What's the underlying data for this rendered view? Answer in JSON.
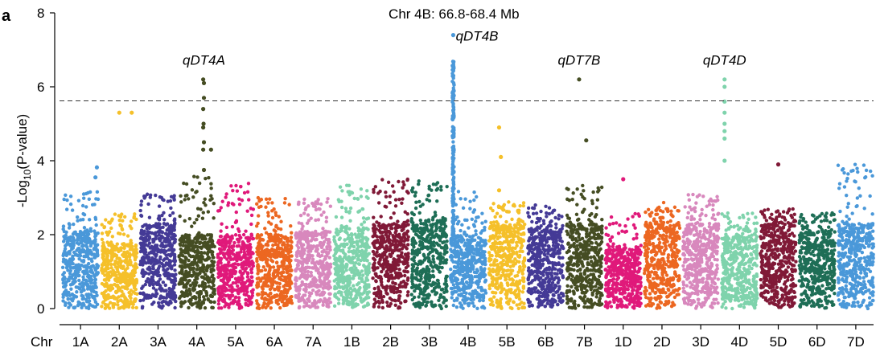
{
  "panel_label": "a",
  "chart_data": {
    "type": "scatter",
    "title": "",
    "xlabel": "Chr",
    "ylabel": "-Log10(P-value)",
    "ylabel_parts": {
      "main": "-Log",
      "sub": "10",
      "rest": "(P-value)"
    },
    "ylim": [
      0,
      8
    ],
    "yticks": [
      0,
      2,
      4,
      6,
      8
    ],
    "threshold": 5.62,
    "grid": false,
    "chromosomes": [
      {
        "name": "1A",
        "color": "#4a98d9",
        "base": 2.1,
        "peak": 3.2
      },
      {
        "name": "2A",
        "color": "#f5c02a",
        "base": 1.8,
        "peak": 2.6
      },
      {
        "name": "3A",
        "color": "#443a96",
        "base": 2.3,
        "peak": 3.1
      },
      {
        "name": "4A",
        "color": "#454d23",
        "base": 2.0,
        "peak": 3.6
      },
      {
        "name": "5A",
        "color": "#e0197a",
        "base": 2.0,
        "peak": 3.4
      },
      {
        "name": "6A",
        "color": "#ec6721",
        "base": 2.0,
        "peak": 3.0
      },
      {
        "name": "7A",
        "color": "#d888bd",
        "base": 2.1,
        "peak": 3.0
      },
      {
        "name": "1B",
        "color": "#7fd3ac",
        "base": 2.2,
        "peak": 3.4
      },
      {
        "name": "2B",
        "color": "#801937",
        "base": 2.3,
        "peak": 3.5
      },
      {
        "name": "3B",
        "color": "#1e6e56",
        "base": 2.4,
        "peak": 3.5
      },
      {
        "name": "4B",
        "color": "#4a98d9",
        "base": 2.0,
        "peak": 3.2
      },
      {
        "name": "5B",
        "color": "#f5c02a",
        "base": 2.3,
        "peak": 2.9
      },
      {
        "name": "6B",
        "color": "#443a96",
        "base": 2.2,
        "peak": 2.8
      },
      {
        "name": "7B",
        "color": "#454d23",
        "base": 2.3,
        "peak": 3.4
      },
      {
        "name": "1D",
        "color": "#e0197a",
        "base": 1.6,
        "peak": 2.6
      },
      {
        "name": "2D",
        "color": "#ec6721",
        "base": 2.3,
        "peak": 2.9
      },
      {
        "name": "3D",
        "color": "#d888bd",
        "base": 2.3,
        "peak": 3.1
      },
      {
        "name": "4D",
        "color": "#7fd3ac",
        "base": 2.0,
        "peak": 2.6
      },
      {
        "name": "5D",
        "color": "#801937",
        "base": 2.3,
        "peak": 2.7
      },
      {
        "name": "6D",
        "color": "#1e6e56",
        "base": 2.1,
        "peak": 2.6
      },
      {
        "name": "7D",
        "color": "#4a98d9",
        "base": 2.3,
        "peak": 3.9
      }
    ],
    "significant_points": [
      {
        "chr": "1A",
        "pos": 0.92,
        "y": 3.55
      },
      {
        "chr": "1A",
        "pos": 0.96,
        "y": 3.82
      },
      {
        "chr": "2A",
        "pos": 0.5,
        "y": 5.3
      },
      {
        "chr": "2A",
        "pos": 0.85,
        "y": 5.3
      },
      {
        "chr": "4A",
        "pos": 0.68,
        "y": 6.2
      },
      {
        "chr": "4A",
        "pos": 0.7,
        "y": 6.1
      },
      {
        "chr": "4A",
        "pos": 0.7,
        "y": 5.7
      },
      {
        "chr": "4A",
        "pos": 0.68,
        "y": 5.4
      },
      {
        "chr": "4A",
        "pos": 0.69,
        "y": 5.0
      },
      {
        "chr": "4A",
        "pos": 0.68,
        "y": 4.9
      },
      {
        "chr": "4A",
        "pos": 0.7,
        "y": 4.5
      },
      {
        "chr": "4A",
        "pos": 0.68,
        "y": 4.3
      },
      {
        "chr": "4A",
        "pos": 0.9,
        "y": 4.3
      },
      {
        "chr": "4A",
        "pos": 0.7,
        "y": 3.75
      },
      {
        "chr": "5B",
        "pos": 0.28,
        "y": 4.9
      },
      {
        "chr": "5B",
        "pos": 0.33,
        "y": 4.1
      },
      {
        "chr": "5B",
        "pos": 0.28,
        "y": 3.2
      },
      {
        "chr": "7B",
        "pos": 0.35,
        "y": 6.2
      },
      {
        "chr": "7B",
        "pos": 0.55,
        "y": 4.55
      },
      {
        "chr": "1D",
        "pos": 0.5,
        "y": 3.5
      },
      {
        "chr": "4D",
        "pos": 0.08,
        "y": 6.2
      },
      {
        "chr": "4D",
        "pos": 0.08,
        "y": 6.0
      },
      {
        "chr": "4D",
        "pos": 0.08,
        "y": 5.6
      },
      {
        "chr": "4D",
        "pos": 0.08,
        "y": 5.3
      },
      {
        "chr": "4D",
        "pos": 0.08,
        "y": 5.0
      },
      {
        "chr": "4D",
        "pos": 0.08,
        "y": 4.8
      },
      {
        "chr": "4D",
        "pos": 0.08,
        "y": 4.6
      },
      {
        "chr": "4D",
        "pos": 0.08,
        "y": 4.0
      },
      {
        "chr": "5D",
        "pos": 0.5,
        "y": 3.9
      },
      {
        "chr": "4B",
        "pos": 0.08,
        "y": 7.4
      }
    ],
    "peak_region": {
      "chr": "4B",
      "pos": 0.08,
      "max": 6.7
    },
    "annotations": [
      {
        "text": "qDT4A",
        "chr": "4A",
        "pos": 0.7,
        "y": 6.6,
        "italic": true
      },
      {
        "text": "qDT4B",
        "chr": "4B",
        "pos": 0.75,
        "y": 7.25,
        "italic": true
      },
      {
        "text": "qDT7B",
        "chr": "7B",
        "pos": 0.35,
        "y": 6.6,
        "italic": true
      },
      {
        "text": "qDT4D",
        "chr": "4D",
        "pos": 0.08,
        "y": 6.6,
        "italic": true
      },
      {
        "text": "Chr 4B: 66.8-68.4 Mb",
        "chr": "4B",
        "pos": 0.1,
        "y": 7.85,
        "italic": false
      }
    ]
  }
}
